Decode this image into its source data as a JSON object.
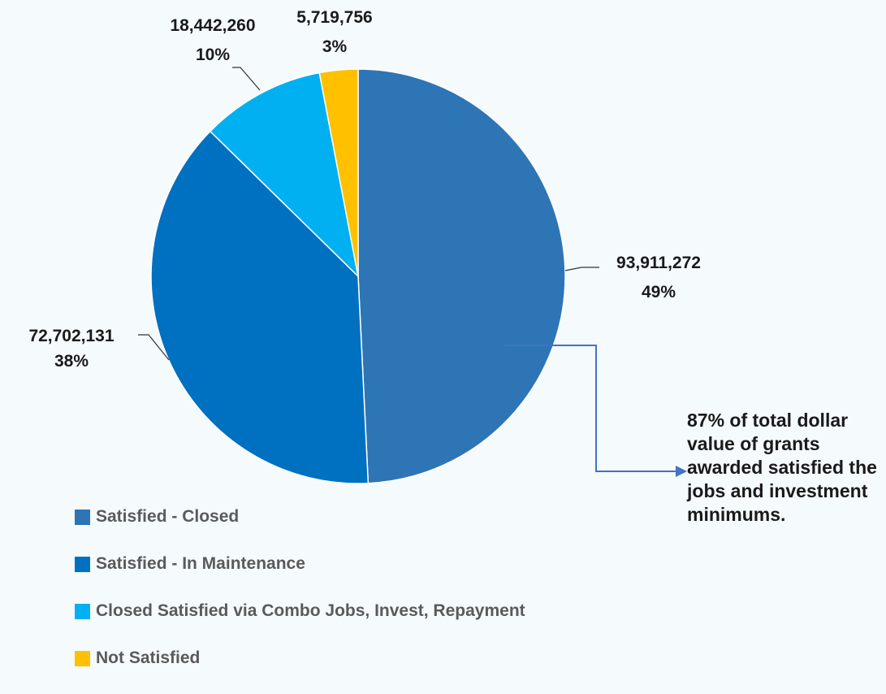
{
  "chart_data": {
    "type": "pie",
    "start_angle_deg": 0,
    "slices": [
      {
        "label": "Satisfied - Closed",
        "value": 93911272,
        "value_text": "93,911,272",
        "percent_text": "49%",
        "color": "#2e75b6"
      },
      {
        "label": "Satisfied - In Maintenance",
        "value": 72702131,
        "value_text": "72,702,131",
        "percent_text": "38%",
        "color": "#0070c0"
      },
      {
        "label": "Closed Satisfied via Combo Jobs, Invest, Repayment",
        "value": 18442260,
        "value_text": "18,442,260",
        "percent_text": "10%",
        "color": "#00b0f0"
      },
      {
        "label": "Not Satisfied",
        "value": 5719756,
        "value_text": "5,719,756",
        "percent_text": "3%",
        "color": "#ffc000"
      }
    ],
    "legend_position": "bottom-left",
    "annotation": "87% of total dollar value of grants awarded satisfied the jobs and investment minimums."
  },
  "colors": {
    "leader_line": "#4472c4",
    "label_line": "#333333",
    "background": "#f5fafd"
  }
}
